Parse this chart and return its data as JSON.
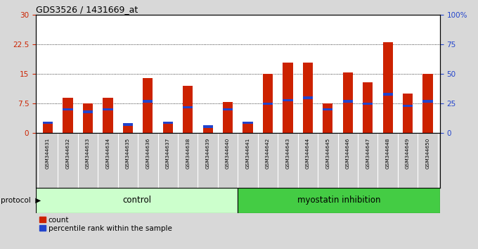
{
  "title": "GDS3526 / 1431669_at",
  "samples": [
    "GSM344631",
    "GSM344632",
    "GSM344633",
    "GSM344634",
    "GSM344635",
    "GSM344636",
    "GSM344637",
    "GSM344638",
    "GSM344639",
    "GSM344640",
    "GSM344641",
    "GSM344642",
    "GSM344643",
    "GSM344644",
    "GSM344645",
    "GSM344646",
    "GSM344647",
    "GSM344648",
    "GSM344649",
    "GSM344650"
  ],
  "red_values": [
    3.0,
    9.0,
    7.5,
    9.0,
    2.5,
    14.0,
    3.0,
    12.0,
    2.0,
    8.0,
    3.0,
    15.0,
    18.0,
    18.0,
    7.5,
    15.5,
    13.0,
    23.0,
    10.0,
    15.0
  ],
  "blue_pct": [
    20,
    20,
    18,
    20,
    15,
    27,
    20,
    22,
    15,
    20,
    15,
    25,
    28,
    30,
    20,
    27,
    25,
    33,
    23,
    27
  ],
  "control_count": 10,
  "myostatin_count": 10,
  "control_label": "control",
  "myostatin_label": "myostatin inhibition",
  "protocol_label": "protocol",
  "legend_red": "count",
  "legend_blue": "percentile rank within the sample",
  "ylim_left": [
    0,
    30
  ],
  "ylim_right": [
    0,
    100
  ],
  "yticks_left": [
    0,
    7.5,
    15,
    22.5,
    30
  ],
  "ytick_labels_left": [
    "0",
    "7.5",
    "15",
    "22.5",
    "30"
  ],
  "yticks_right": [
    0,
    25,
    50,
    75,
    100
  ],
  "ytick_labels_right": [
    "0",
    "25",
    "50",
    "75",
    "100%"
  ],
  "bar_width": 0.5,
  "red_color": "#cc2200",
  "blue_color": "#2244cc",
  "control_bg": "#ccffcc",
  "myostatin_bg": "#44cc44",
  "grid_color": "#000000",
  "plot_bg": "#ffffff",
  "label_bg": "#d0d0d0",
  "outer_bg": "#d8d8d8"
}
